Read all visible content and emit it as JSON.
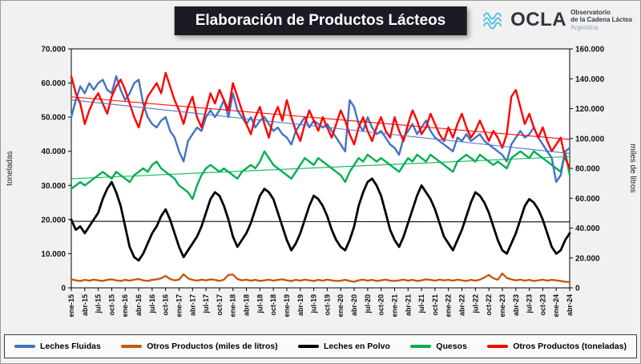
{
  "header": {
    "title": "Elaboración de Productos Lácteos",
    "logo": {
      "brand": "OCLA",
      "line1": "Observatorio",
      "line2": "de la Cadena Láctea",
      "line3": "Argentina"
    }
  },
  "chart_data": {
    "type": "line",
    "title": "Elaboración de Productos Lácteos",
    "grid": false,
    "legend_position": "bottom",
    "left_axis": {
      "label": "toneladas",
      "min": 0,
      "max": 70000,
      "step": 10000
    },
    "right_axis": {
      "label": "miles de litros",
      "min": 0,
      "max": 160000,
      "step": 20000
    },
    "x_tick_every": 3,
    "categories": [
      "ene-15",
      "feb-15",
      "mar-15",
      "abr-15",
      "may-15",
      "jun-15",
      "jul-15",
      "ago-15",
      "sep-15",
      "oct-15",
      "nov-15",
      "dic-15",
      "ene-16",
      "feb-16",
      "mar-16",
      "abr-16",
      "may-16",
      "jun-16",
      "jul-16",
      "ago-16",
      "sep-16",
      "oct-16",
      "nov-16",
      "dic-16",
      "ene-17",
      "feb-17",
      "mar-17",
      "abr-17",
      "may-17",
      "jun-17",
      "jul-17",
      "ago-17",
      "sep-17",
      "oct-17",
      "nov-17",
      "dic-17",
      "ene-18",
      "feb-18",
      "mar-18",
      "abr-18",
      "may-18",
      "jun-18",
      "jul-18",
      "ago-18",
      "sep-18",
      "oct-18",
      "nov-18",
      "dic-18",
      "ene-19",
      "feb-19",
      "mar-19",
      "abr-19",
      "may-19",
      "jun-19",
      "jul-19",
      "ago-19",
      "sep-19",
      "oct-19",
      "nov-19",
      "dic-19",
      "ene-20",
      "feb-20",
      "mar-20",
      "abr-20",
      "may-20",
      "jun-20",
      "jul-20",
      "ago-20",
      "sep-20",
      "oct-20",
      "nov-20",
      "dic-20",
      "ene-21",
      "feb-21",
      "mar-21",
      "abr-21",
      "may-21",
      "jun-21",
      "jul-21",
      "ago-21",
      "sep-21",
      "oct-21",
      "nov-21",
      "dic-21",
      "ene-22",
      "feb-22",
      "mar-22",
      "abr-22",
      "may-22",
      "jun-22",
      "jul-22",
      "ago-22",
      "sep-22",
      "oct-22",
      "nov-22",
      "dic-22",
      "ene-23",
      "feb-23",
      "mar-23",
      "abr-23",
      "may-23",
      "jun-23",
      "jul-23",
      "ago-23",
      "sep-23",
      "oct-23",
      "nov-23",
      "dic-23",
      "ene-24",
      "feb-24",
      "mar-24",
      "abr-24"
    ],
    "series": [
      {
        "name": "Leches Fluidas",
        "color": "#4472C4",
        "axis": "right",
        "trend": true,
        "values": [
          114300,
          125700,
          134900,
          130300,
          137100,
          132600,
          137100,
          139400,
          132600,
          130300,
          141700,
          132600,
          125700,
          130300,
          137100,
          139400,
          123400,
          114300,
          109700,
          107400,
          112000,
          114300,
          105100,
          100600,
          91400,
          84600,
          98300,
          102900,
          107400,
          105100,
          114300,
          118900,
          114300,
          118900,
          125700,
          114300,
          130300,
          118900,
          114300,
          109700,
          114300,
          107400,
          112000,
          114300,
          109700,
          105100,
          107400,
          102900,
          100600,
          96000,
          105100,
          109700,
          114300,
          107400,
          112000,
          109700,
          107400,
          109700,
          105100,
          100600,
          96000,
          91400,
          125700,
          121100,
          109700,
          105100,
          114300,
          107400,
          102900,
          105100,
          100600,
          96000,
          93700,
          89100,
          100600,
          105100,
          109700,
          102900,
          107400,
          112000,
          105100,
          100600,
          98300,
          96000,
          93700,
          91400,
          100600,
          98300,
          102900,
          98300,
          100600,
          102900,
          98300,
          96000,
          93700,
          91400,
          89100,
          84600,
          96000,
          100600,
          105100,
          100600,
          102900,
          107400,
          100600,
          96000,
          91400,
          86900,
          70900,
          75400,
          91400,
          93700
        ]
      },
      {
        "name": "Otros Productos (miles de litros)",
        "color": "#C55A11",
        "axis": "right",
        "trend": false,
        "values": [
          5700,
          5000,
          4600,
          5300,
          4800,
          5500,
          5000,
          4600,
          5300,
          5700,
          5000,
          4600,
          5300,
          4800,
          5500,
          5900,
          5000,
          4600,
          5300,
          5700,
          6400,
          8000,
          5900,
          5000,
          5500,
          9100,
          6400,
          5300,
          4800,
          5500,
          5000,
          5700,
          5300,
          4600,
          5500,
          8700,
          8900,
          5900,
          5000,
          5500,
          4800,
          5300,
          4600,
          5000,
          5500,
          4800,
          5300,
          5700,
          5000,
          4600,
          5300,
          4800,
          5500,
          5000,
          4600,
          5300,
          4800,
          5500,
          5000,
          4600,
          4800,
          5300,
          4600,
          4100,
          5000,
          5500,
          4800,
          5300,
          4600,
          5000,
          5500,
          4800,
          4600,
          5000,
          5500,
          4800,
          5300,
          4600,
          5000,
          5700,
          5300,
          4800,
          5500,
          5000,
          5300,
          4800,
          5500,
          5000,
          4600,
          5300,
          4800,
          5500,
          6900,
          8700,
          6400,
          5500,
          9600,
          6600,
          5700,
          5000,
          5500,
          4800,
          5300,
          4600,
          5000,
          5500,
          4800,
          5300,
          5000,
          4600,
          4100,
          3900
        ]
      },
      {
        "name": "Leches en Polvo",
        "color": "#000000",
        "axis": "left",
        "trend": true,
        "values": [
          20000,
          17000,
          18000,
          16000,
          18000,
          20000,
          22000,
          26000,
          29000,
          31000,
          28000,
          24000,
          18000,
          12000,
          9000,
          8000,
          10000,
          13000,
          16000,
          18000,
          21000,
          23000,
          20000,
          16000,
          12000,
          9000,
          11000,
          13000,
          15000,
          18000,
          22000,
          26000,
          28000,
          27000,
          24000,
          20000,
          15000,
          12000,
          14000,
          16000,
          19000,
          23000,
          27000,
          29000,
          28000,
          26000,
          22000,
          18000,
          14000,
          11000,
          13000,
          16000,
          20000,
          24000,
          27000,
          26000,
          24000,
          21000,
          17000,
          14000,
          12000,
          11000,
          14000,
          18000,
          24000,
          28000,
          31000,
          32000,
          30000,
          27000,
          22000,
          17000,
          14000,
          12000,
          15000,
          19000,
          23000,
          27000,
          30000,
          28000,
          26000,
          23000,
          19000,
          15000,
          13000,
          11000,
          14000,
          17000,
          21000,
          25000,
          28000,
          27000,
          25000,
          22000,
          18000,
          14000,
          11000,
          10000,
          13000,
          16000,
          20000,
          24000,
          26000,
          25000,
          23000,
          20000,
          16000,
          12000,
          10000,
          11000,
          14000,
          16000
        ]
      },
      {
        "name": "Quesos",
        "color": "#00B050",
        "axis": "left",
        "trend": true,
        "values": [
          29000,
          30000,
          31000,
          30000,
          31000,
          32000,
          33000,
          34000,
          33000,
          32000,
          34000,
          33000,
          32000,
          31000,
          33000,
          34000,
          35000,
          34000,
          36000,
          37000,
          35000,
          34000,
          33000,
          32000,
          30000,
          29000,
          28000,
          26000,
          30000,
          33000,
          35000,
          36000,
          35000,
          34000,
          35000,
          34000,
          33000,
          32000,
          34000,
          35000,
          36000,
          35000,
          37000,
          40000,
          38000,
          36000,
          35000,
          34000,
          33000,
          32000,
          34000,
          36000,
          38000,
          37000,
          36000,
          38000,
          37000,
          36000,
          35000,
          34000,
          33000,
          31000,
          34000,
          36000,
          38000,
          37000,
          39000,
          38000,
          37000,
          38000,
          37000,
          36000,
          35000,
          34000,
          36000,
          38000,
          37000,
          39000,
          38000,
          37000,
          39000,
          38000,
          37000,
          36000,
          35000,
          34000,
          37000,
          38000,
          39000,
          38000,
          37000,
          39000,
          38000,
          37000,
          36000,
          37000,
          36000,
          35000,
          38000,
          39000,
          40000,
          39000,
          38000,
          40000,
          39000,
          38000,
          37000,
          36000,
          35000,
          34000,
          40000,
          33000
        ]
      },
      {
        "name": "Otros Productos (toneladas)",
        "color": "#FF0000",
        "axis": "left",
        "trend": true,
        "values": [
          62000,
          57000,
          54000,
          48000,
          52000,
          55000,
          57000,
          54000,
          51000,
          56000,
          59000,
          61000,
          58000,
          54000,
          50000,
          47000,
          52000,
          56000,
          58000,
          60000,
          57000,
          63000,
          59000,
          55000,
          52000,
          48000,
          53000,
          56000,
          50000,
          47000,
          52000,
          57000,
          54000,
          58000,
          55000,
          52000,
          60000,
          56000,
          52000,
          48000,
          45000,
          50000,
          53000,
          48000,
          44000,
          50000,
          53000,
          49000,
          55000,
          50000,
          46000,
          43000,
          48000,
          52000,
          49000,
          46000,
          50000,
          47000,
          44000,
          48000,
          52000,
          49000,
          45000,
          42000,
          47000,
          50000,
          46000,
          43000,
          47000,
          50000,
          46000,
          44000,
          50000,
          46000,
          43000,
          48000,
          52000,
          49000,
          45000,
          47000,
          51000,
          48000,
          45000,
          43000,
          47000,
          44000,
          48000,
          51000,
          47000,
          44000,
          46000,
          49000,
          46000,
          43000,
          46000,
          44000,
          41000,
          45000,
          56000,
          58000,
          53000,
          48000,
          51000,
          47000,
          44000,
          47000,
          43000,
          40000,
          42000,
          44000,
          38000,
          35000
        ]
      }
    ]
  }
}
